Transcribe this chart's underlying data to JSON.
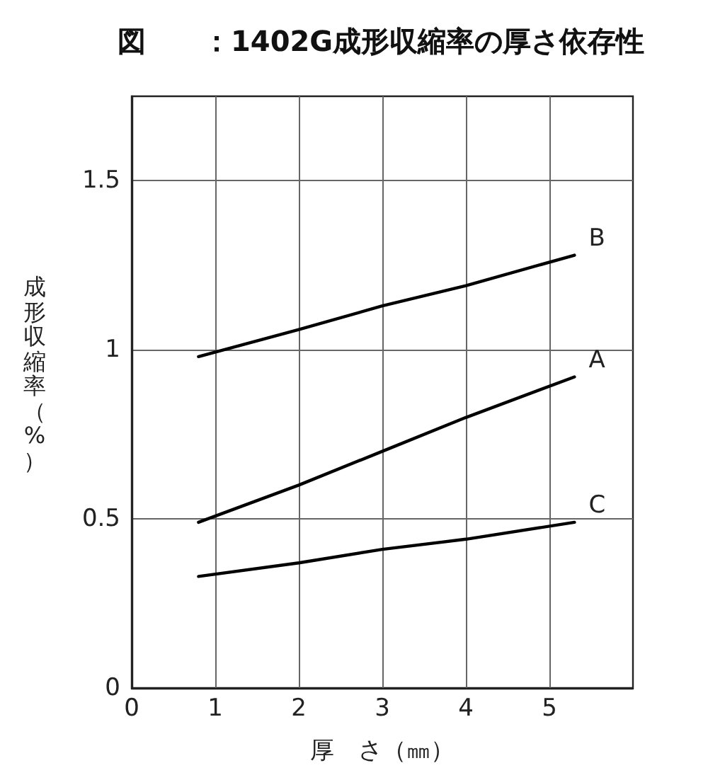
{
  "chart_data": {
    "type": "line",
    "title": "図　　：1402G成形収縮率の厚さ依存性",
    "xlabel": "厚　さ（㎜）",
    "ylabel": "成形収縮率（%）",
    "x": [
      0.8,
      2,
      3,
      4,
      5.3
    ],
    "series": [
      {
        "name": "A",
        "color": "#000000",
        "values": [
          0.49,
          0.6,
          0.7,
          0.8,
          0.92
        ]
      },
      {
        "name": "B",
        "color": "#000000",
        "values": [
          0.98,
          1.06,
          1.13,
          1.19,
          1.28
        ]
      },
      {
        "name": "C",
        "color": "#000000",
        "values": [
          0.33,
          0.37,
          0.41,
          0.44,
          0.49
        ]
      }
    ],
    "xlim": [
      0,
      6
    ],
    "xticks": [
      0,
      1,
      2,
      3,
      4,
      5
    ],
    "ylim": [
      0,
      1.75
    ],
    "yticks": [
      0,
      0.5,
      1,
      1.5
    ],
    "grid": true,
    "marker": "none"
  }
}
